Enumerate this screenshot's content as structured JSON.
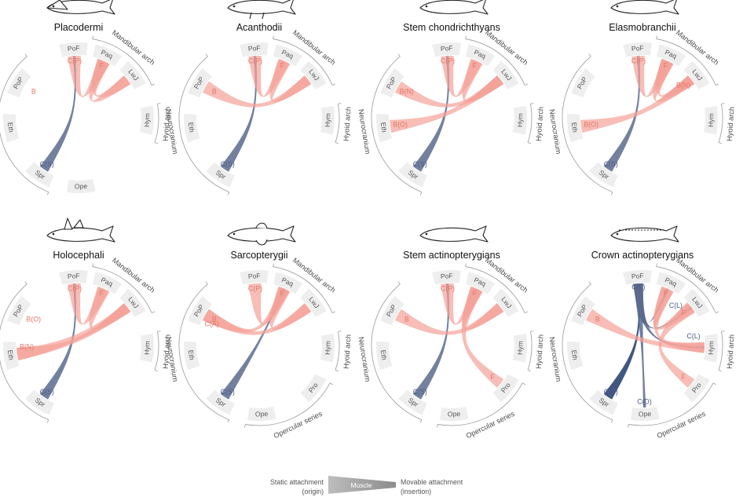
{
  "colors": {
    "static": "#5b6b8e",
    "static_dark": "#1f3a6b",
    "movable": "#f3a197",
    "segment": "#eeeeee",
    "label": "#555555",
    "ann_static": "#4b5a86",
    "ann_movable": "#e4776a"
  },
  "panels": [
    {
      "title": "Placodermi",
      "silhouette": "placoderm-icon",
      "segments": [
        "PoF",
        "Paq",
        "LwJ",
        "Hym",
        "Ope",
        "Spr",
        "Eth",
        "PoP"
      ],
      "groups": [
        "Mandibular arch",
        "Hyoid arch",
        "Neurocranium"
      ],
      "ribbons": [
        {
          "from": "Spr",
          "to": "PoF",
          "type": "static"
        },
        {
          "from": "PoF",
          "to": "Paq",
          "type": "movable"
        },
        {
          "from": "Paq",
          "to": "LwJ",
          "type": "movable"
        },
        {
          "from": "Paq",
          "to": "LwJ",
          "type": "movable",
          "bend": 0.3
        }
      ],
      "annotations": [
        {
          "text": "C(P)",
          "at": "PoF",
          "type": "movable"
        },
        {
          "text": "F",
          "at": "Paq",
          "type": "movable"
        },
        {
          "text": "B",
          "at": "PoP",
          "type": "movable",
          "inner": true
        },
        {
          "text": "C(S)",
          "at": "Spr",
          "type": "static"
        }
      ]
    },
    {
      "title": "Acanthodii",
      "silhouette": "acanthodian-icon",
      "segments": [
        "PoF",
        "Paq",
        "LwJ",
        "Hym",
        "Spr",
        "Eth",
        "PoP"
      ],
      "groups": [
        "Mandibular arch",
        "Hyoid arch",
        "Neurocranium"
      ],
      "ribbons": [
        {
          "from": "Spr",
          "to": "PoF",
          "type": "static"
        },
        {
          "from": "PoF",
          "to": "Paq",
          "type": "movable"
        },
        {
          "from": "Paq",
          "to": "LwJ",
          "type": "movable"
        },
        {
          "from": "PoP",
          "to": "LwJ",
          "type": "movable"
        }
      ],
      "annotations": [
        {
          "text": "C(P)",
          "at": "PoF",
          "type": "movable"
        },
        {
          "text": "F",
          "at": "Paq",
          "type": "movable"
        },
        {
          "text": "B",
          "at": "PoP",
          "type": "movable",
          "inner": true
        },
        {
          "text": "C(S)",
          "at": "Spr",
          "type": "static"
        }
      ]
    },
    {
      "title": "Stem chondrichthyans",
      "silhouette": "stem-chondrichthyan-icon",
      "segments": [
        "PoF",
        "Paq",
        "LwJ",
        "Hym",
        "Spr",
        "Eth",
        "PoP"
      ],
      "groups": [
        "Mandibular arch",
        "Hyoid arch",
        "Neurocranium"
      ],
      "ribbons": [
        {
          "from": "Spr",
          "to": "PoF",
          "type": "static"
        },
        {
          "from": "PoF",
          "to": "Paq",
          "type": "movable"
        },
        {
          "from": "Paq",
          "to": "LwJ",
          "type": "movable"
        },
        {
          "from": "PoP",
          "to": "LwJ",
          "type": "movable"
        },
        {
          "from": "Eth",
          "to": "LwJ",
          "type": "movable"
        }
      ],
      "annotations": [
        {
          "text": "C(P)",
          "at": "PoF",
          "type": "movable"
        },
        {
          "text": "F",
          "at": "Paq",
          "type": "movable"
        },
        {
          "text": "B(N)",
          "at": "PoP",
          "type": "movable",
          "inner": true
        },
        {
          "text": "B(O)",
          "at": "Eth",
          "type": "movable",
          "inner": true
        },
        {
          "text": "C(S)",
          "at": "Spr",
          "type": "static"
        }
      ]
    },
    {
      "title": "Elasmobranchii",
      "silhouette": "shark-icon",
      "segments": [
        "PoF",
        "Paq",
        "LwJ",
        "Hym",
        "Spr",
        "Eth",
        "PoP"
      ],
      "groups": [
        "Mandibular arch",
        "Hyoid arch",
        "Neurocranium"
      ],
      "ribbons": [
        {
          "from": "Spr",
          "to": "PoF",
          "type": "static"
        },
        {
          "from": "PoF",
          "to": "Paq",
          "type": "movable"
        },
        {
          "from": "Paq",
          "to": "LwJ",
          "type": "movable"
        },
        {
          "from": "Paq",
          "to": "LwJ",
          "type": "movable",
          "bend": 0.3
        },
        {
          "from": "Eth",
          "to": "LwJ",
          "type": "movable"
        }
      ],
      "annotations": [
        {
          "text": "C(P)",
          "at": "PoF",
          "type": "movable"
        },
        {
          "text": "F",
          "at": "Paq",
          "type": "movable"
        },
        {
          "text": "B(N)",
          "at": "LwJ",
          "type": "movable",
          "inner": true
        },
        {
          "text": "B(O)",
          "at": "Eth",
          "type": "movable",
          "inner": true
        },
        {
          "text": "C(S)",
          "at": "Spr",
          "type": "static"
        }
      ]
    },
    {
      "title": "Holocephali",
      "silhouette": "chimaera-icon",
      "segments": [
        "PoF",
        "Paq",
        "LwJ",
        "Hym",
        "Spr",
        "Eth",
        "PoP"
      ],
      "groups": [
        "Mandibular arch",
        "Hyoid arch",
        "Neurocranium"
      ],
      "ribbons": [
        {
          "from": "Spr",
          "to": "PoF",
          "type": "static"
        },
        {
          "from": "PoF",
          "to": "Paq",
          "type": "movable"
        },
        {
          "from": "Paq",
          "to": "LwJ",
          "type": "movable"
        },
        {
          "from": "Eth",
          "to": "LwJ",
          "type": "movable"
        },
        {
          "from": "Eth",
          "to": "LwJ",
          "type": "movable",
          "bend": 0.35
        }
      ],
      "annotations": [
        {
          "text": "C(P)",
          "at": "PoF",
          "type": "movable"
        },
        {
          "text": "F",
          "at": "Paq",
          "type": "movable"
        },
        {
          "text": "B(O)",
          "at": "PoP",
          "type": "movable",
          "inner": true
        },
        {
          "text": "B(N)",
          "at": "Eth",
          "type": "movable",
          "inner": true,
          "shift": 1
        },
        {
          "text": "C(S)",
          "at": "Spr",
          "type": "static"
        }
      ]
    },
    {
      "title": "Sarcopterygii",
      "silhouette": "coelacanth-icon",
      "segments": [
        "PoF",
        "Paq",
        "LwJ",
        "Hym",
        "Pro",
        "Ope",
        "Spr",
        "Eth",
        "PoP"
      ],
      "groups": [
        "Mandibular arch",
        "Hyoid arch",
        "Opercular series",
        "Neurocranium"
      ],
      "ribbons": [
        {
          "from": "Spr",
          "to": "Paq",
          "type": "static"
        },
        {
          "from": "PoF",
          "to": "Paq",
          "type": "movable"
        },
        {
          "from": "Paq",
          "to": "LwJ",
          "type": "movable"
        },
        {
          "from": "PoP",
          "to": "Paq",
          "type": "movable"
        },
        {
          "from": "PoP",
          "to": "LwJ",
          "type": "movable"
        }
      ],
      "annotations": [
        {
          "text": "C(P)",
          "at": "PoF",
          "type": "movable"
        },
        {
          "text": "F",
          "at": "Paq",
          "type": "movable"
        },
        {
          "text": "C(A)",
          "at": "PoP",
          "type": "movable",
          "inner": true,
          "shift": -1
        },
        {
          "text": "B",
          "at": "PoP",
          "type": "movable",
          "inner": true
        },
        {
          "text": "C(S)",
          "at": "Spr",
          "type": "static"
        }
      ]
    },
    {
      "title": "Stem actinopterygians",
      "silhouette": "stem-actinopterygian-icon",
      "segments": [
        "PoF",
        "Paq",
        "LwJ",
        "Hym",
        "Pro",
        "Ope",
        "Spr",
        "Eth",
        "PoP"
      ],
      "groups": [
        "Mandibular arch",
        "Hyoid arch",
        "Opercular series",
        "Neurocranium"
      ],
      "ribbons": [
        {
          "from": "Spr",
          "to": "PoF",
          "type": "static"
        },
        {
          "from": "PoF",
          "to": "Paq",
          "type": "movable"
        },
        {
          "from": "Paq",
          "to": "LwJ",
          "type": "movable"
        },
        {
          "from": "PoP",
          "to": "LwJ",
          "type": "movable"
        },
        {
          "from": "Paq",
          "to": "Pro",
          "type": "movable"
        }
      ],
      "annotations": [
        {
          "text": "C(P)",
          "at": "PoF",
          "type": "movable"
        },
        {
          "text": "F",
          "at": "Paq",
          "type": "movable"
        },
        {
          "text": "B",
          "at": "PoP",
          "type": "movable",
          "inner": true
        },
        {
          "text": "F",
          "at": "Pro",
          "type": "movable",
          "inner": true
        },
        {
          "text": "C(S)",
          "at": "Spr",
          "type": "static"
        }
      ]
    },
    {
      "title": "Crown actinopterygians",
      "silhouette": "sturgeon-icon",
      "segments": [
        "PoF",
        "Paq",
        "LwJ",
        "Hym",
        "Pro",
        "Ope",
        "Spr",
        "Eth",
        "PoP"
      ],
      "groups": [
        "Mandibular arch",
        "Hyoid arch",
        "Opercular series",
        "Neurocranium"
      ],
      "ribbons": [
        {
          "from": "Spr",
          "to": "PoF",
          "type": "static_dark"
        },
        {
          "from": "PoF",
          "to": "Paq",
          "type": "static_dark"
        },
        {
          "from": "PoF",
          "to": "LwJ",
          "type": "static"
        },
        {
          "from": "PoF",
          "to": "Hym",
          "type": "static"
        },
        {
          "from": "PoF",
          "to": "Ope",
          "type": "static"
        },
        {
          "from": "Paq",
          "to": "LwJ",
          "type": "movable"
        },
        {
          "from": "PoP",
          "to": "Hym",
          "type": "movable"
        },
        {
          "from": "Paq",
          "to": "Hym",
          "type": "movable"
        },
        {
          "from": "LwJ",
          "to": "Pro",
          "type": "movable"
        }
      ],
      "annotations": [
        {
          "text": "C(L)",
          "at": "PoF",
          "type": "static",
          "outer": true
        },
        {
          "text": "C(L)",
          "at": "LwJ",
          "type": "static",
          "inner": true,
          "shift": -2
        },
        {
          "text": "C(L)",
          "at": "Hym",
          "type": "static",
          "inner": true,
          "shift": -2
        },
        {
          "text": "F",
          "at": "Paq",
          "type": "movable"
        },
        {
          "text": "F",
          "at": "LwJ",
          "type": "movable",
          "inner": true
        },
        {
          "text": "F",
          "at": "Pro",
          "type": "movable",
          "inner": true
        },
        {
          "text": "B",
          "at": "PoP",
          "type": "movable",
          "inner": true
        },
        {
          "text": "C(S)",
          "at": "Spr",
          "type": "static"
        },
        {
          "text": "C(D)",
          "at": "Ope",
          "type": "static"
        }
      ]
    }
  ],
  "legend": {
    "static_label": "Static attachment",
    "static_sub": "(origin)",
    "muscle_label": "Muscle",
    "movable_label": "Movable attachment",
    "movable_sub": "(insertion)"
  }
}
